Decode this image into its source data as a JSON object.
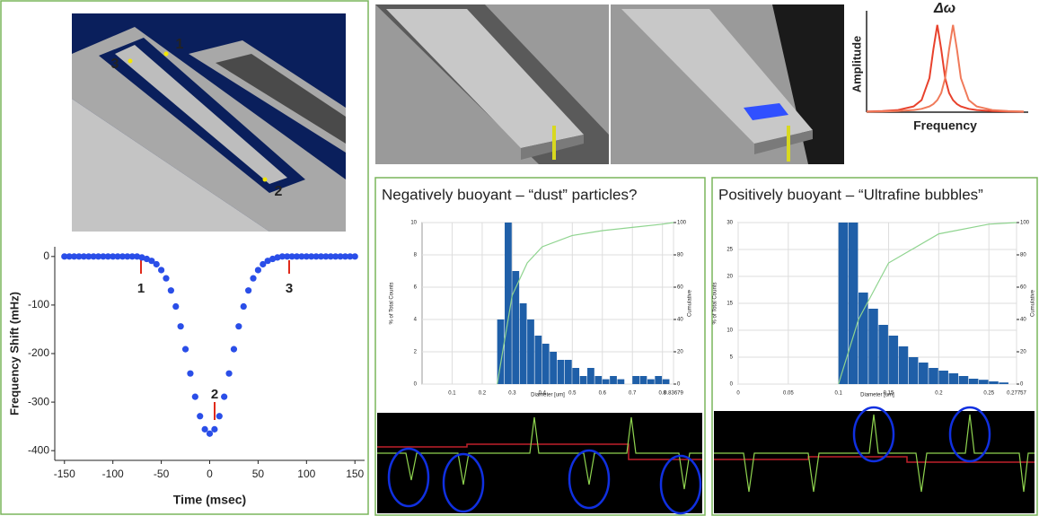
{
  "render_labels": [
    "3",
    "1",
    "2"
  ],
  "chart_data": [
    {
      "type": "scatter",
      "xlabel": "Time (msec)",
      "ylabel": "Frequency Shift (mHz)",
      "annotations": [
        "1",
        "2",
        "3"
      ],
      "xlim": [
        -160,
        160
      ],
      "xticks": [
        -150,
        -100,
        -50,
        0,
        50,
        100,
        150
      ],
      "ylim": [
        -420,
        20
      ],
      "yticks": [
        0,
        -100,
        -200,
        -300,
        -400
      ],
      "grid": false,
      "color": "#2a4ee8",
      "x": [
        -150,
        -145,
        -140,
        -135,
        -130,
        -125,
        -120,
        -115,
        -110,
        -105,
        -100,
        -95,
        -90,
        -85,
        -80,
        -75,
        -70,
        -65,
        -60,
        -55,
        -50,
        -45,
        -40,
        -35,
        -30,
        -25,
        -20,
        -15,
        -10,
        -5,
        0,
        5,
        10,
        15,
        20,
        25,
        30,
        35,
        40,
        45,
        50,
        55,
        60,
        65,
        70,
        75,
        80,
        85,
        90,
        95,
        100,
        105,
        110,
        115,
        120,
        125,
        130,
        135,
        140,
        145,
        150
      ],
      "values": [
        0,
        0,
        0,
        0,
        0,
        0,
        0,
        0,
        0,
        0,
        0,
        0,
        0,
        0,
        0,
        0,
        -2,
        -5,
        -9,
        -16,
        -28,
        -45,
        -70,
        -103,
        -144,
        -191,
        -241,
        -289,
        -329,
        -356,
        -365,
        -356,
        -329,
        -289,
        -241,
        -191,
        -144,
        -103,
        -70,
        -45,
        -28,
        -16,
        -9,
        -5,
        -2,
        0,
        0,
        0,
        0,
        0,
        0,
        0,
        0,
        0,
        0,
        0,
        0,
        0,
        0,
        0,
        0
      ]
    },
    {
      "type": "line",
      "xlabel": "Frequency",
      "ylabel": "Amplitude",
      "annotations": [
        "Δω"
      ],
      "xlim": [
        0,
        10
      ],
      "ylim": [
        0,
        1.1
      ],
      "grid": false,
      "series": [
        {
          "color": "#e8412c",
          "x": [
            0,
            1,
            2,
            3,
            3.5,
            4,
            4.25,
            4.5,
            4.75,
            5,
            5.25,
            5.5,
            5.75,
            6,
            6.5,
            7,
            8,
            9,
            10
          ],
          "values": [
            0.008,
            0.013,
            0.025,
            0.066,
            0.138,
            0.39,
            0.72,
            1,
            0.72,
            0.39,
            0.22,
            0.138,
            0.093,
            0.066,
            0.038,
            0.025,
            0.013,
            0.008,
            0.005
          ]
        },
        {
          "color": "#f07a5a",
          "x": [
            0,
            1,
            2,
            3,
            3.5,
            4,
            4.25,
            4.5,
            4.75,
            5,
            5.25,
            5.5,
            5.75,
            6,
            6.5,
            7,
            8,
            9,
            10
          ],
          "values": [
            0.005,
            0.008,
            0.013,
            0.025,
            0.038,
            0.066,
            0.093,
            0.138,
            0.22,
            0.39,
            0.72,
            1,
            0.72,
            0.39,
            0.138,
            0.066,
            0.025,
            0.013,
            0.008
          ]
        }
      ]
    },
    {
      "type": "histogram",
      "title": "Negatively buoyant – “dust” particles?",
      "xlabel": "Diameter [um]",
      "ylabel": "% of Total Counts",
      "y2label": "Cumulative",
      "xlim": [
        0,
        0.83679
      ],
      "xticks": [
        0.1,
        0.2,
        0.3,
        0.4,
        0.5,
        0.6,
        0.7,
        0.8,
        0.83679
      ],
      "ylim": [
        0,
        10
      ],
      "yticks": [
        0,
        2,
        4,
        6,
        8,
        10
      ],
      "y2lim": [
        0,
        100
      ],
      "y2ticks": [
        0,
        20,
        40,
        60,
        80,
        100
      ],
      "grid": true,
      "color": "#1f5fa8",
      "bins": [
        0.25,
        0.275,
        0.3,
        0.325,
        0.35,
        0.375,
        0.4,
        0.425,
        0.45,
        0.475,
        0.5,
        0.525,
        0.55,
        0.575,
        0.6,
        0.625,
        0.65,
        0.675,
        0.7,
        0.725,
        0.75,
        0.775,
        0.8,
        0.825
      ],
      "values": [
        4,
        10,
        7,
        5,
        4,
        3,
        2.5,
        2,
        1.5,
        1.5,
        1,
        0.5,
        1,
        0.5,
        0.3,
        0.5,
        0.3,
        0,
        0.5,
        0.5,
        0.3,
        0.5,
        0.3
      ],
      "series": [
        {
          "axis": "y2",
          "color": "#8fd48f",
          "x": [
            0.25,
            0.3,
            0.35,
            0.4,
            0.5,
            0.6,
            0.7,
            0.8,
            0.83679
          ],
          "values": [
            0,
            55,
            75,
            85,
            92,
            95,
            97,
            99,
            100
          ]
        }
      ]
    },
    {
      "type": "histogram",
      "title": "Positively buoyant – “Ultrafine bubbles”",
      "xlabel": "Diameter [um]",
      "ylabel": "% of Total Counts",
      "y2label": "Cumulative",
      "xlim": [
        0,
        0.27757
      ],
      "xticks": [
        0,
        0.05,
        0.1,
        0.15,
        0.2,
        0.25,
        0.27757
      ],
      "ylim": [
        0,
        30
      ],
      "yticks": [
        0,
        5,
        10,
        15,
        20,
        25,
        30
      ],
      "y2lim": [
        0,
        100
      ],
      "y2ticks": [
        0,
        20,
        40,
        60,
        80,
        100
      ],
      "grid": true,
      "color": "#1f5fa8",
      "bins": [
        0.1,
        0.11,
        0.12,
        0.13,
        0.14,
        0.15,
        0.16,
        0.17,
        0.18,
        0.19,
        0.2,
        0.21,
        0.22,
        0.23,
        0.24,
        0.25,
        0.26,
        0.27
      ],
      "values": [
        30,
        30,
        17,
        14,
        11,
        9,
        7,
        5,
        4,
        3,
        2.5,
        2,
        1.5,
        1,
        0.8,
        0.5,
        0.3
      ],
      "series": [
        {
          "axis": "y2",
          "color": "#8fd48f",
          "x": [
            0.1,
            0.12,
            0.15,
            0.2,
            0.25,
            0.27757
          ],
          "values": [
            0,
            40,
            75,
            93,
            99,
            100
          ]
        }
      ]
    }
  ]
}
